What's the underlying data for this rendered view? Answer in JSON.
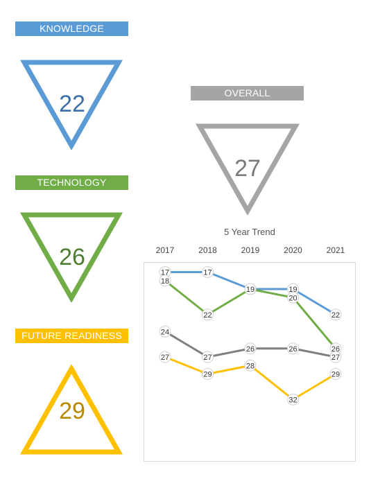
{
  "metrics": {
    "knowledge": {
      "label": "KNOWLEDGE",
      "value": "22",
      "color": "#5b9bd5",
      "text_color": "#3a6fa8",
      "icon": "down-triangle"
    },
    "technology": {
      "label": "TECHNOLOGY",
      "value": "26",
      "color": "#70ad47",
      "text_color": "#4e7f30",
      "icon": "down-triangle"
    },
    "future_readiness": {
      "label": "FUTURE READINESS",
      "value": "29",
      "color": "#ffc000",
      "text_color": "#b88a00",
      "icon": "up-triangle"
    },
    "overall": {
      "label": "OVERALL",
      "value": "27",
      "color": "#a5a5a5",
      "text_color": "#7a7a7a",
      "icon": "down-triangle"
    }
  },
  "chart_data": {
    "type": "line",
    "title": "5 Year Trend",
    "x": [
      "2017",
      "2018",
      "2019",
      "2020",
      "2021"
    ],
    "y_scale": "inverted rank (lower value plotted higher)",
    "ylim": [
      16,
      33
    ],
    "grid": false,
    "legend": "none",
    "series": [
      {
        "values": [
          17,
          17,
          19,
          19,
          22
        ],
        "color": "#5b9bd5"
      },
      {
        "values": [
          18,
          22,
          19,
          20,
          26
        ],
        "color": "#70ad47"
      },
      {
        "values": [
          24,
          27,
          26,
          26,
          27
        ],
        "color": "#7f7f7f"
      },
      {
        "values": [
          27,
          29,
          28,
          32,
          29
        ],
        "color": "#ffc000"
      }
    ]
  }
}
